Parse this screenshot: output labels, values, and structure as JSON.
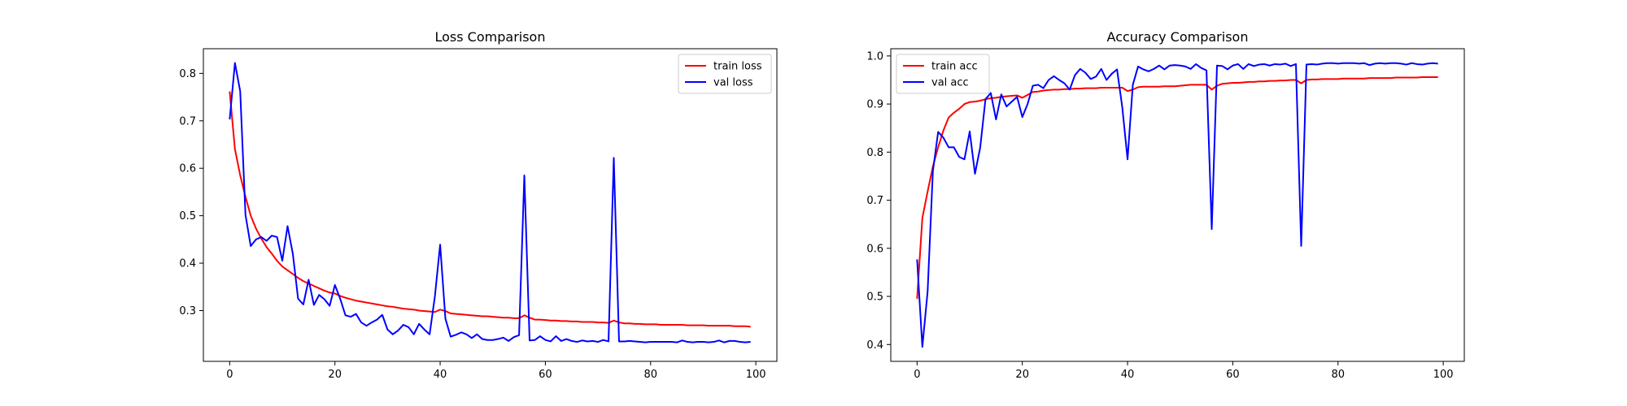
{
  "chart_data": [
    {
      "type": "line",
      "title": "Loss Comparison",
      "xlabel": "",
      "ylabel": "",
      "xlim": [
        -5,
        104
      ],
      "ylim": [
        0.193,
        0.852
      ],
      "xticks": [
        0,
        20,
        40,
        60,
        80,
        100
      ],
      "yticks": [
        0.3,
        0.4,
        0.5,
        0.6,
        0.7,
        0.8
      ],
      "grid": false,
      "legend_loc": "upper right",
      "series": [
        {
          "name": "train loss",
          "color": "#ff0000",
          "x": [
            0,
            1,
            2,
            3,
            4,
            5,
            6,
            7,
            8,
            9,
            10,
            11,
            12,
            13,
            14,
            15,
            16,
            17,
            18,
            19,
            20,
            21,
            22,
            23,
            24,
            25,
            26,
            27,
            28,
            29,
            30,
            31,
            32,
            33,
            34,
            35,
            36,
            37,
            38,
            39,
            40,
            41,
            42,
            43,
            44,
            45,
            46,
            47,
            48,
            49,
            50,
            51,
            52,
            53,
            54,
            55,
            56,
            57,
            58,
            59,
            60,
            61,
            62,
            63,
            64,
            65,
            66,
            67,
            68,
            69,
            70,
            71,
            72,
            73,
            74,
            75,
            76,
            77,
            78,
            79,
            80,
            81,
            82,
            83,
            84,
            85,
            86,
            87,
            88,
            89,
            90,
            91,
            92,
            93,
            94,
            95,
            96,
            97,
            98,
            99
          ],
          "values": [
            0.762,
            0.64,
            0.585,
            0.54,
            0.5,
            0.473,
            0.452,
            0.434,
            0.42,
            0.405,
            0.393,
            0.385,
            0.377,
            0.369,
            0.362,
            0.357,
            0.352,
            0.347,
            0.342,
            0.338,
            0.336,
            0.331,
            0.327,
            0.324,
            0.321,
            0.319,
            0.317,
            0.315,
            0.313,
            0.311,
            0.309,
            0.308,
            0.306,
            0.304,
            0.303,
            0.302,
            0.3,
            0.299,
            0.298,
            0.297,
            0.302,
            0.299,
            0.294,
            0.293,
            0.292,
            0.291,
            0.29,
            0.289,
            0.288,
            0.288,
            0.287,
            0.286,
            0.285,
            0.285,
            0.284,
            0.284,
            0.29,
            0.285,
            0.281,
            0.281,
            0.28,
            0.279,
            0.279,
            0.278,
            0.278,
            0.277,
            0.277,
            0.276,
            0.276,
            0.276,
            0.275,
            0.275,
            0.274,
            0.279,
            0.275,
            0.273,
            0.273,
            0.272,
            0.272,
            0.271,
            0.271,
            0.271,
            0.27,
            0.27,
            0.27,
            0.27,
            0.27,
            0.269,
            0.269,
            0.269,
            0.269,
            0.268,
            0.268,
            0.268,
            0.268,
            0.268,
            0.267,
            0.267,
            0.267,
            0.266
          ]
        },
        {
          "name": "val loss",
          "color": "#0000ff",
          "x": [
            0,
            1,
            2,
            3,
            4,
            5,
            6,
            7,
            8,
            9,
            10,
            11,
            12,
            13,
            14,
            15,
            16,
            17,
            18,
            19,
            20,
            21,
            22,
            23,
            24,
            25,
            26,
            27,
            28,
            29,
            30,
            31,
            32,
            33,
            34,
            35,
            36,
            37,
            38,
            39,
            40,
            41,
            42,
            43,
            44,
            45,
            46,
            47,
            48,
            49,
            50,
            51,
            52,
            53,
            54,
            55,
            56,
            57,
            58,
            59,
            60,
            61,
            62,
            63,
            64,
            65,
            66,
            67,
            68,
            69,
            70,
            71,
            72,
            73,
            74,
            75,
            76,
            77,
            78,
            79,
            80,
            81,
            82,
            83,
            84,
            85,
            86,
            87,
            88,
            89,
            90,
            91,
            92,
            93,
            94,
            95,
            96,
            97,
            98,
            99
          ],
          "values": [
            0.703,
            0.822,
            0.762,
            0.502,
            0.436,
            0.45,
            0.455,
            0.447,
            0.458,
            0.455,
            0.405,
            0.478,
            0.42,
            0.325,
            0.313,
            0.365,
            0.312,
            0.333,
            0.324,
            0.31,
            0.354,
            0.325,
            0.29,
            0.287,
            0.293,
            0.275,
            0.268,
            0.275,
            0.281,
            0.291,
            0.26,
            0.25,
            0.258,
            0.27,
            0.265,
            0.25,
            0.272,
            0.26,
            0.25,
            0.33,
            0.439,
            0.283,
            0.245,
            0.249,
            0.254,
            0.25,
            0.242,
            0.25,
            0.24,
            0.238,
            0.238,
            0.24,
            0.243,
            0.236,
            0.244,
            0.248,
            0.585,
            0.237,
            0.238,
            0.246,
            0.238,
            0.235,
            0.246,
            0.236,
            0.24,
            0.236,
            0.234,
            0.237,
            0.235,
            0.236,
            0.234,
            0.238,
            0.235,
            0.622,
            0.235,
            0.235,
            0.236,
            0.235,
            0.234,
            0.233,
            0.234,
            0.234,
            0.234,
            0.234,
            0.234,
            0.233,
            0.237,
            0.234,
            0.233,
            0.234,
            0.234,
            0.233,
            0.234,
            0.237,
            0.233,
            0.236,
            0.236,
            0.234,
            0.233,
            0.234
          ]
        }
      ]
    },
    {
      "type": "line",
      "title": "Accuracy Comparison",
      "xlabel": "",
      "ylabel": "",
      "xlim": [
        -5,
        104
      ],
      "ylim": [
        0.365,
        1.015
      ],
      "xticks": [
        0,
        20,
        40,
        60,
        80,
        100
      ],
      "yticks": [
        0.4,
        0.5,
        0.6,
        0.7,
        0.8,
        0.9,
        1.0
      ],
      "grid": false,
      "legend_loc": "upper left",
      "series": [
        {
          "name": "train acc",
          "color": "#ff0000",
          "x": [
            0,
            1,
            2,
            3,
            4,
            5,
            6,
            7,
            8,
            9,
            10,
            11,
            12,
            13,
            14,
            15,
            16,
            17,
            18,
            19,
            20,
            21,
            22,
            23,
            24,
            25,
            26,
            27,
            28,
            29,
            30,
            31,
            32,
            33,
            34,
            35,
            36,
            37,
            38,
            39,
            40,
            41,
            42,
            43,
            44,
            45,
            46,
            47,
            48,
            49,
            50,
            51,
            52,
            53,
            54,
            55,
            56,
            57,
            58,
            59,
            60,
            61,
            62,
            63,
            64,
            65,
            66,
            67,
            68,
            69,
            70,
            71,
            72,
            73,
            74,
            75,
            76,
            77,
            78,
            79,
            80,
            81,
            82,
            83,
            84,
            85,
            86,
            87,
            88,
            89,
            90,
            91,
            92,
            93,
            94,
            95,
            96,
            97,
            98,
            99
          ],
          "values": [
            0.495,
            0.663,
            0.718,
            0.77,
            0.81,
            0.845,
            0.872,
            0.882,
            0.89,
            0.9,
            0.904,
            0.905,
            0.907,
            0.91,
            0.912,
            0.913,
            0.915,
            0.916,
            0.917,
            0.918,
            0.913,
            0.919,
            0.925,
            0.926,
            0.928,
            0.929,
            0.93,
            0.93,
            0.931,
            0.931,
            0.932,
            0.932,
            0.933,
            0.933,
            0.933,
            0.934,
            0.934,
            0.934,
            0.934,
            0.934,
            0.927,
            0.93,
            0.935,
            0.936,
            0.936,
            0.936,
            0.936,
            0.937,
            0.937,
            0.937,
            0.938,
            0.939,
            0.94,
            0.94,
            0.94,
            0.94,
            0.93,
            0.938,
            0.942,
            0.943,
            0.944,
            0.944,
            0.945,
            0.946,
            0.946,
            0.947,
            0.947,
            0.948,
            0.948,
            0.949,
            0.949,
            0.95,
            0.95,
            0.943,
            0.95,
            0.951,
            0.951,
            0.952,
            0.952,
            0.952,
            0.952,
            0.953,
            0.953,
            0.953,
            0.953,
            0.953,
            0.954,
            0.954,
            0.954,
            0.954,
            0.954,
            0.955,
            0.955,
            0.955,
            0.955,
            0.955,
            0.956,
            0.956,
            0.956,
            0.956
          ]
        },
        {
          "name": "val acc",
          "color": "#0000ff",
          "x": [
            0,
            1,
            2,
            3,
            4,
            5,
            6,
            7,
            8,
            9,
            10,
            11,
            12,
            13,
            14,
            15,
            16,
            17,
            18,
            19,
            20,
            21,
            22,
            23,
            24,
            25,
            26,
            27,
            28,
            29,
            30,
            31,
            32,
            33,
            34,
            35,
            36,
            37,
            38,
            39,
            40,
            41,
            42,
            43,
            44,
            45,
            46,
            47,
            48,
            49,
            50,
            51,
            52,
            53,
            54,
            55,
            56,
            57,
            58,
            59,
            60,
            61,
            62,
            63,
            64,
            65,
            66,
            67,
            68,
            69,
            70,
            71,
            72,
            73,
            74,
            75,
            76,
            77,
            78,
            79,
            80,
            81,
            82,
            83,
            84,
            85,
            86,
            87,
            88,
            89,
            90,
            91,
            92,
            93,
            94,
            95,
            96,
            97,
            98,
            99
          ],
          "values": [
            0.577,
            0.395,
            0.51,
            0.76,
            0.842,
            0.83,
            0.81,
            0.81,
            0.79,
            0.785,
            0.843,
            0.755,
            0.81,
            0.91,
            0.923,
            0.868,
            0.92,
            0.895,
            0.905,
            0.915,
            0.873,
            0.9,
            0.938,
            0.94,
            0.933,
            0.95,
            0.958,
            0.95,
            0.943,
            0.93,
            0.96,
            0.973,
            0.965,
            0.952,
            0.957,
            0.973,
            0.95,
            0.963,
            0.972,
            0.893,
            0.785,
            0.94,
            0.978,
            0.972,
            0.968,
            0.973,
            0.98,
            0.972,
            0.98,
            0.981,
            0.98,
            0.978,
            0.973,
            0.983,
            0.975,
            0.97,
            0.64,
            0.98,
            0.979,
            0.972,
            0.98,
            0.983,
            0.973,
            0.983,
            0.979,
            0.982,
            0.983,
            0.98,
            0.983,
            0.982,
            0.984,
            0.979,
            0.983,
            0.605,
            0.982,
            0.983,
            0.982,
            0.984,
            0.985,
            0.985,
            0.984,
            0.985,
            0.985,
            0.985,
            0.984,
            0.985,
            0.981,
            0.984,
            0.985,
            0.984,
            0.985,
            0.985,
            0.984,
            0.982,
            0.985,
            0.983,
            0.982,
            0.984,
            0.985,
            0.984
          ]
        }
      ]
    }
  ]
}
